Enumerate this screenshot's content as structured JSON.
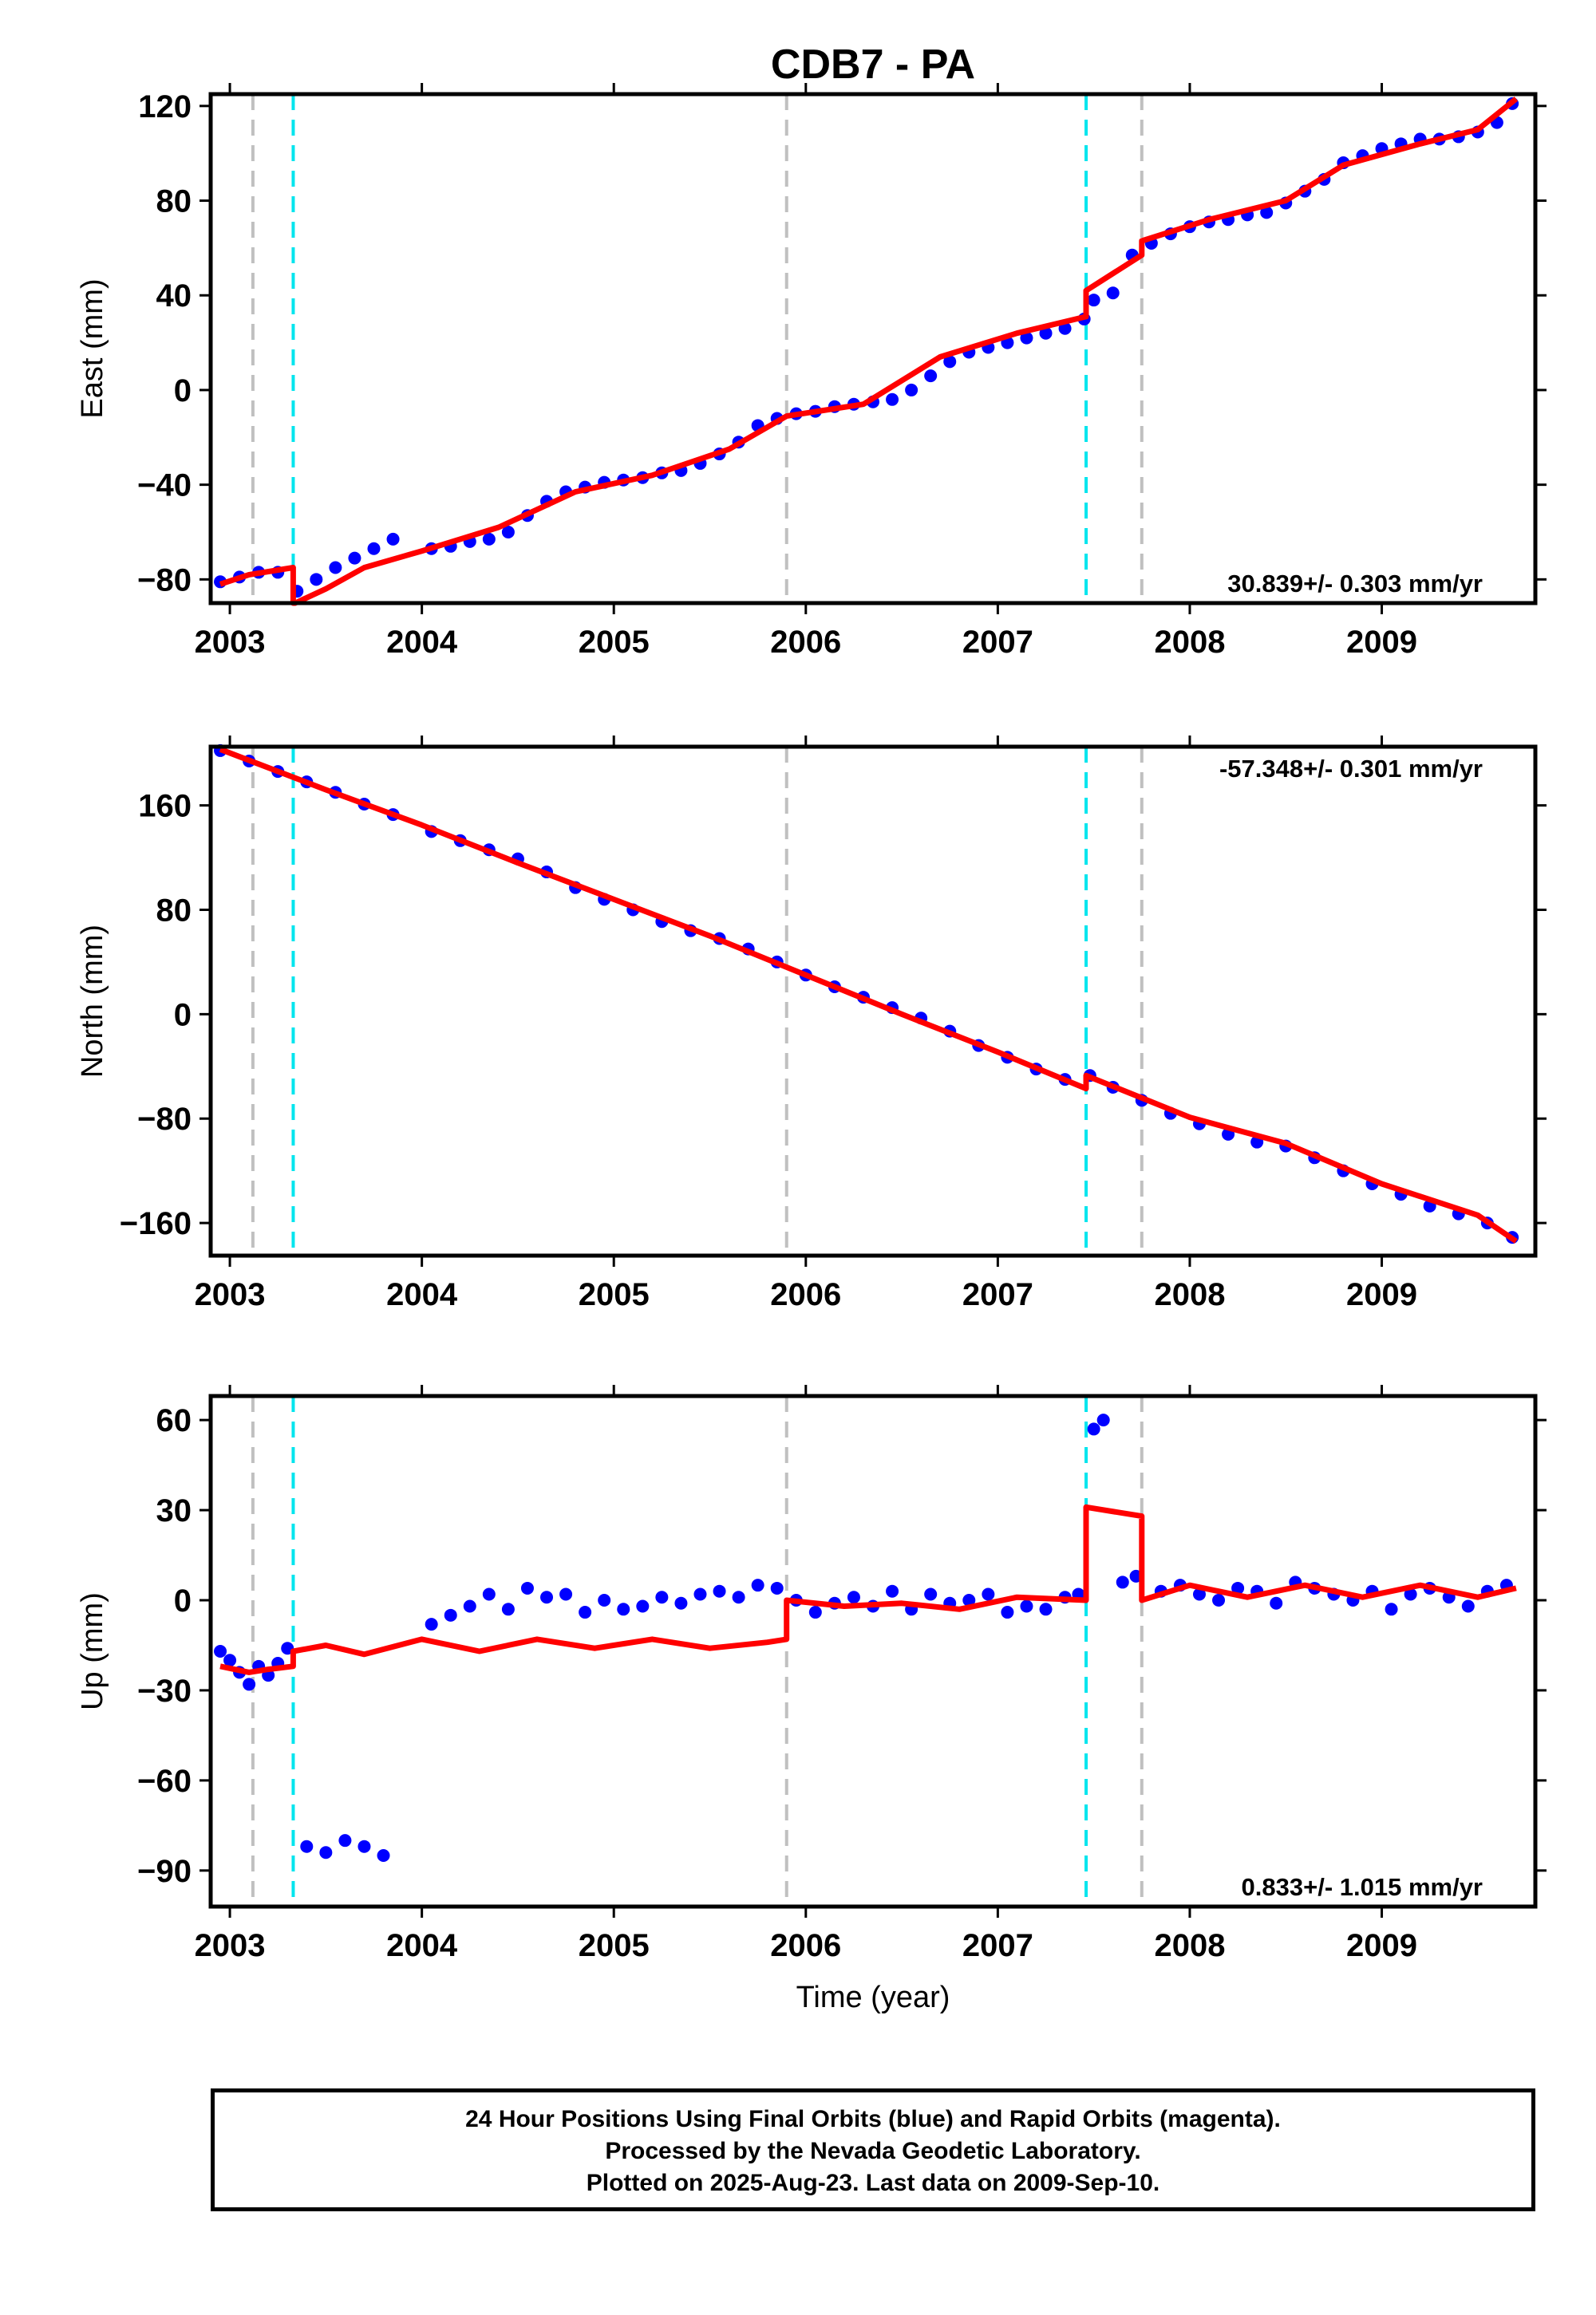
{
  "title": "CDB7 - PA",
  "xlabel": "Time (year)",
  "footer": {
    "line1": "24 Hour Positions Using Final Orbits (blue) and Rapid Orbits (magenta).",
    "line2": "Processed by the Nevada Geodetic Laboratory.",
    "line3": "Plotted on 2025-Aug-23. Last data on 2009-Sep-10."
  },
  "colors": {
    "data": "#0000ff",
    "model": "#ff0000",
    "equipment_change": "#c0c0c0",
    "earthquake": "#00e5ee"
  },
  "chart_data": [
    {
      "type": "scatter",
      "panel": "east",
      "ylabel": "East (mm)",
      "rate_text": "30.839+/- 0.303 mm/yr",
      "rate_position": "bottom-right",
      "xlim": [
        2002.9,
        2009.8
      ],
      "ylim": [
        -90,
        125
      ],
      "xticks": [
        2003,
        2004,
        2005,
        2006,
        2007,
        2008,
        2009
      ],
      "yticks": [
        -80,
        -40,
        0,
        40,
        80,
        120
      ],
      "ytick_labels": [
        "−80",
        "−40",
        "0",
        "40",
        "80",
        "120"
      ],
      "vlines_gray": [
        2003.12,
        2005.9,
        2007.75
      ],
      "vlines_cyan": [
        2003.33,
        2007.46
      ],
      "model_x": [
        2002.95,
        2003.1,
        2003.33,
        2003.33,
        2003.34,
        2003.5,
        2003.7,
        2004.0,
        2004.4,
        2004.8,
        2005.2,
        2005.6,
        2005.9,
        2006.3,
        2006.7,
        2007.1,
        2007.46,
        2007.46,
        2007.75,
        2007.75,
        2008.1,
        2008.5,
        2008.8,
        2009.2,
        2009.5,
        2009.7
      ],
      "model_y": [
        -82,
        -78,
        -75,
        -90,
        -90,
        -84,
        -75,
        -68,
        -58,
        -43,
        -36,
        -25,
        -11,
        -6,
        14,
        24,
        31,
        42,
        57,
        63,
        72,
        80,
        95,
        104,
        110,
        123
      ],
      "points_x": [
        2002.95,
        2003.05,
        2003.15,
        2003.25,
        2003.35,
        2003.45,
        2003.55,
        2003.65,
        2003.75,
        2003.85,
        2004.05,
        2004.15,
        2004.25,
        2004.35,
        2004.45,
        2004.55,
        2004.65,
        2004.75,
        2004.85,
        2004.95,
        2005.05,
        2005.15,
        2005.25,
        2005.35,
        2005.45,
        2005.55,
        2005.65,
        2005.75,
        2005.85,
        2005.95,
        2006.05,
        2006.15,
        2006.25,
        2006.35,
        2006.45,
        2006.55,
        2006.65,
        2006.75,
        2006.85,
        2006.95,
        2007.05,
        2007.15,
        2007.25,
        2007.35,
        2007.45,
        2007.5,
        2007.6,
        2007.7,
        2007.8,
        2007.9,
        2008.0,
        2008.1,
        2008.2,
        2008.3,
        2008.4,
        2008.5,
        2008.6,
        2008.7,
        2008.8,
        2008.9,
        2009.0,
        2009.1,
        2009.2,
        2009.3,
        2009.4,
        2009.5,
        2009.6,
        2009.68
      ],
      "points_y": [
        -81,
        -79,
        -77,
        -77,
        -85,
        -80,
        -75,
        -71,
        -67,
        -63,
        -67,
        -66,
        -64,
        -63,
        -60,
        -53,
        -47,
        -43,
        -41,
        -39,
        -38,
        -37,
        -35,
        -34,
        -31,
        -27,
        -22,
        -15,
        -12,
        -10,
        -9,
        -7,
        -6,
        -5,
        -4,
        0,
        6,
        12,
        16,
        18,
        20,
        22,
        24,
        26,
        30,
        38,
        41,
        57,
        62,
        66,
        69,
        71,
        72,
        74,
        75,
        79,
        84,
        89,
        96,
        99,
        102,
        104,
        106,
        106,
        107,
        109,
        113,
        121
      ]
    },
    {
      "type": "scatter",
      "panel": "north",
      "ylabel": "North (mm)",
      "rate_text": "-57.348+/- 0.301 mm/yr",
      "rate_position": "top-right",
      "xlim": [
        2002.9,
        2009.8
      ],
      "ylim": [
        -185,
        205
      ],
      "xticks": [
        2003,
        2004,
        2005,
        2006,
        2007,
        2008,
        2009
      ],
      "yticks": [
        -160,
        -80,
        0,
        80,
        160
      ],
      "ytick_labels": [
        "−160",
        "−80",
        "0",
        "80",
        "160"
      ],
      "vlines_gray": [
        2003.12,
        2005.9,
        2007.75
      ],
      "vlines_cyan": [
        2003.33,
        2007.46
      ],
      "model_x": [
        2002.95,
        2003.5,
        2004.0,
        2004.5,
        2005.0,
        2005.5,
        2006.0,
        2006.5,
        2007.0,
        2007.46,
        2007.46,
        2008.0,
        2008.5,
        2009.0,
        2009.5,
        2009.7
      ],
      "model_y": [
        203,
        172,
        145,
        116,
        88,
        60,
        30,
        0,
        -29,
        -57,
        -47,
        -79,
        -99,
        -130,
        -154,
        -174
      ],
      "points_x": [
        2002.95,
        2003.1,
        2003.25,
        2003.4,
        2003.55,
        2003.7,
        2003.85,
        2004.05,
        2004.2,
        2004.35,
        2004.5,
        2004.65,
        2004.8,
        2004.95,
        2005.1,
        2005.25,
        2005.4,
        2005.55,
        2005.7,
        2005.85,
        2006.0,
        2006.15,
        2006.3,
        2006.45,
        2006.6,
        2006.75,
        2006.9,
        2007.05,
        2007.2,
        2007.35,
        2007.48,
        2007.6,
        2007.75,
        2007.9,
        2008.05,
        2008.2,
        2008.35,
        2008.5,
        2008.65,
        2008.8,
        2008.95,
        2009.1,
        2009.25,
        2009.4,
        2009.55,
        2009.68
      ],
      "points_y": [
        202,
        194,
        186,
        178,
        170,
        161,
        153,
        140,
        133,
        126,
        119,
        109,
        97,
        88,
        80,
        71,
        64,
        58,
        50,
        40,
        30,
        21,
        13,
        5,
        -3,
        -13,
        -24,
        -33,
        -42,
        -50,
        -47,
        -56,
        -66,
        -76,
        -84,
        -92,
        -98,
        -101,
        -110,
        -120,
        -130,
        -138,
        -147,
        -153,
        -160,
        -171
      ]
    },
    {
      "type": "scatter",
      "panel": "up",
      "ylabel": "Up (mm)",
      "rate_text": "0.833+/- 1.015 mm/yr",
      "rate_position": "bottom-right",
      "xlim": [
        2002.9,
        2009.8
      ],
      "ylim": [
        -102,
        68
      ],
      "xticks": [
        2003,
        2004,
        2005,
        2006,
        2007,
        2008,
        2009
      ],
      "yticks": [
        -90,
        -60,
        -30,
        0,
        30,
        60
      ],
      "ytick_labels": [
        "−90",
        "−60",
        "−30",
        "0",
        "30",
        "60"
      ],
      "vlines_gray": [
        2003.12,
        2005.9,
        2007.75
      ],
      "vlines_cyan": [
        2003.33,
        2007.46
      ],
      "model_x": [
        2002.95,
        2003.1,
        2003.2,
        2003.33,
        2003.33,
        2003.5,
        2003.7,
        2004.0,
        2004.3,
        2004.6,
        2004.9,
        2005.2,
        2005.5,
        2005.8,
        2005.9,
        2005.9,
        2006.2,
        2006.5,
        2006.8,
        2007.1,
        2007.46,
        2007.46,
        2007.75,
        2007.75,
        2008.0,
        2008.3,
        2008.6,
        2008.9,
        2009.2,
        2009.5,
        2009.7
      ],
      "model_y": [
        -22,
        -24,
        -23,
        -22,
        -17,
        -15,
        -18,
        -13,
        -17,
        -13,
        -16,
        -13,
        -16,
        -14,
        -13,
        0,
        -2,
        -1,
        -3,
        1,
        0,
        31,
        28,
        0,
        5,
        1,
        5,
        1,
        5,
        1,
        4
      ],
      "points_x": [
        2002.95,
        2003.0,
        2003.05,
        2003.1,
        2003.15,
        2003.2,
        2003.25,
        2003.3,
        2003.4,
        2003.5,
        2003.6,
        2003.7,
        2003.8,
        2004.05,
        2004.15,
        2004.25,
        2004.35,
        2004.45,
        2004.55,
        2004.65,
        2004.75,
        2004.85,
        2004.95,
        2005.05,
        2005.15,
        2005.25,
        2005.35,
        2005.45,
        2005.55,
        2005.65,
        2005.75,
        2005.85,
        2005.95,
        2006.05,
        2006.15,
        2006.25,
        2006.35,
        2006.45,
        2006.55,
        2006.65,
        2006.75,
        2006.85,
        2006.95,
        2007.05,
        2007.15,
        2007.25,
        2007.35,
        2007.42,
        2007.5,
        2007.55,
        2007.65,
        2007.72,
        2007.85,
        2007.95,
        2008.05,
        2008.15,
        2008.25,
        2008.35,
        2008.45,
        2008.55,
        2008.65,
        2008.75,
        2008.85,
        2008.95,
        2009.05,
        2009.15,
        2009.25,
        2009.35,
        2009.45,
        2009.55,
        2009.65
      ],
      "points_y": [
        -17,
        -20,
        -24,
        -28,
        -22,
        -25,
        -21,
        -16,
        -82,
        -84,
        -80,
        -82,
        -85,
        -8,
        -5,
        -2,
        2,
        -3,
        4,
        1,
        2,
        -4,
        0,
        -3,
        -2,
        1,
        -1,
        2,
        3,
        1,
        5,
        4,
        0,
        -4,
        -1,
        1,
        -2,
        3,
        -3,
        2,
        -1,
        0,
        2,
        -4,
        -2,
        -3,
        1,
        2,
        57,
        60,
        6,
        8,
        3,
        5,
        2,
        0,
        4,
        3,
        -1,
        6,
        4,
        2,
        0,
        3,
        -3,
        2,
        4,
        1,
        -2,
        3,
        5
      ]
    }
  ]
}
